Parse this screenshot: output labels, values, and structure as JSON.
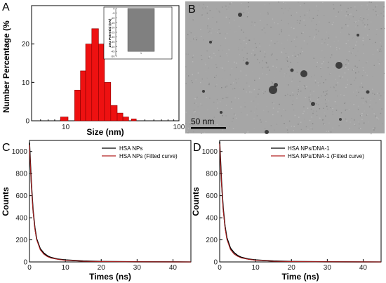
{
  "panels": {
    "A": {
      "letter": "A"
    },
    "B": {
      "letter": "B",
      "scale_bar_label": "50 nm"
    },
    "C": {
      "letter": "C"
    },
    "D": {
      "letter": "D"
    }
  },
  "colors": {
    "histogram_bar": "#ee1111",
    "histogram_edge": "#880000",
    "inset_bar": "#808080",
    "measured_curve": "#000000",
    "fitted_curve": "#b22222",
    "tem_background": "#a6a6a6"
  },
  "chart_data": [
    {
      "panel": "A",
      "type": "bar",
      "xscale": "log",
      "xlim": [
        5,
        100
      ],
      "ylim": [
        0,
        30
      ],
      "xlabel": "Size (nm)",
      "ylabel": "Number Percentage (%",
      "xticks": [
        "10",
        "100"
      ],
      "yticks": [
        "0",
        "10",
        "20"
      ],
      "bins": [
        {
          "x0": 9.0,
          "x1": 10.5,
          "value": 1
        },
        {
          "x0": 12.0,
          "x1": 13.5,
          "value": 8
        },
        {
          "x0": 13.5,
          "x1": 15.0,
          "value": 13
        },
        {
          "x0": 15.0,
          "x1": 17.0,
          "value": 20
        },
        {
          "x0": 17.0,
          "x1": 19.5,
          "value": 24
        },
        {
          "x0": 19.5,
          "x1": 22.0,
          "value": 20
        },
        {
          "x0": 22.0,
          "x1": 25.0,
          "value": 10
        },
        {
          "x0": 25.0,
          "x1": 28.5,
          "value": 4
        },
        {
          "x0": 28.5,
          "x1": 32.0,
          "value": 2
        },
        {
          "x0": 32.0,
          "x1": 36.0,
          "value": 1
        },
        {
          "x0": 38.0,
          "x1": 42.0,
          "value": 0.5
        }
      ],
      "inset": {
        "type": "bar",
        "ylabel": "Zeta Potential (mV)",
        "ylim": [
          -50,
          0
        ],
        "yticks": [
          "0",
          "-5",
          "-10",
          "-15",
          "-20",
          "-25",
          "-30",
          "-35",
          "-40",
          "-45",
          "-50"
        ],
        "xticks": [
          "1"
        ],
        "values": [
          -45
        ]
      }
    },
    {
      "panel": "C",
      "type": "line",
      "xlim": [
        0,
        45
      ],
      "ylim": [
        0,
        1100
      ],
      "xlabel": "Times (ns)",
      "ylabel": "Counts",
      "xticks": [
        "0",
        "10",
        "20",
        "30",
        "40"
      ],
      "yticks": [
        "0",
        "200",
        "400",
        "600",
        "800",
        "1000"
      ],
      "legend_position": "top-right",
      "series": [
        {
          "name": "HSA NPs",
          "x": [
            0,
            0.5,
            1,
            1.5,
            2,
            3,
            4,
            5,
            6,
            8,
            10,
            15,
            20,
            30,
            45
          ],
          "y": [
            1080,
            720,
            470,
            310,
            210,
            120,
            80,
            55,
            40,
            25,
            18,
            8,
            4,
            1,
            0
          ]
        },
        {
          "name": "HSA NPs (Fitted curve)",
          "x": [
            0,
            0.5,
            1,
            1.5,
            2,
            3,
            4,
            5,
            6,
            8,
            10,
            15,
            20,
            30,
            45
          ],
          "y": [
            1060,
            700,
            460,
            300,
            200,
            110,
            70,
            48,
            35,
            22,
            15,
            6,
            3,
            1,
            0
          ]
        }
      ]
    },
    {
      "panel": "D",
      "type": "line",
      "xlim": [
        0,
        45
      ],
      "ylim": [
        0,
        1100
      ],
      "xlabel": "Time (ns)",
      "ylabel": "Counts",
      "xticks": [
        "0",
        "10",
        "20",
        "30",
        "40"
      ],
      "yticks": [
        "0",
        "200",
        "400",
        "600",
        "800",
        "1000"
      ],
      "legend_position": "top-right",
      "series": [
        {
          "name": "HSA NPs/DNA-1",
          "x": [
            0,
            0.5,
            1,
            1.5,
            2,
            3,
            4,
            5,
            6,
            8,
            10,
            15,
            20,
            30,
            45
          ],
          "y": [
            1090,
            730,
            480,
            320,
            220,
            125,
            85,
            58,
            42,
            26,
            18,
            8,
            4,
            1,
            0
          ]
        },
        {
          "name": "HSA NPs/DNA-1 (Fitted curve)",
          "x": [
            0,
            0.5,
            1,
            1.5,
            2,
            3,
            4,
            5,
            6,
            8,
            10,
            15,
            20,
            30,
            45
          ],
          "y": [
            1070,
            710,
            465,
            305,
            205,
            112,
            72,
            50,
            36,
            23,
            16,
            6,
            3,
            1,
            0
          ]
        }
      ]
    }
  ]
}
